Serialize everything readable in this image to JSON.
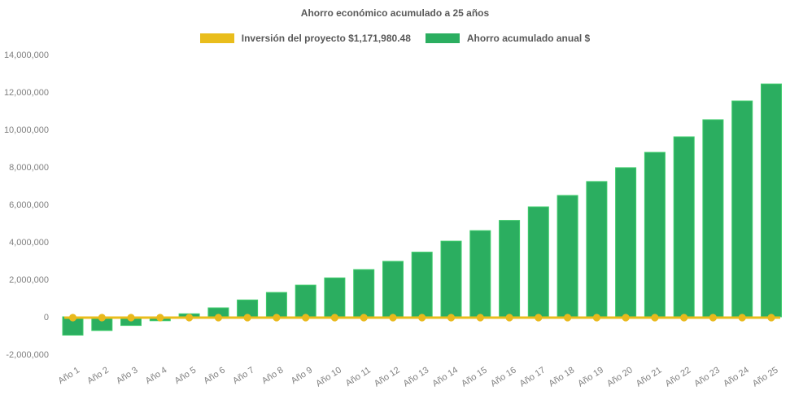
{
  "chart_data": {
    "type": "bar",
    "title": "Ahorro económico acumulado a 25 años",
    "categories": [
      "Año 1",
      "Año 2",
      "Año 3",
      "Año 4",
      "Año 5",
      "Año 6",
      "Año 7",
      "Año 8",
      "Año 9",
      "Año 10",
      "Año 11",
      "Año 12",
      "Año 13",
      "Año 14",
      "Año 15",
      "Año 16",
      "Año 17",
      "Año 18",
      "Año 19",
      "Año 20",
      "Año 21",
      "Año 22",
      "Año 23",
      "Año 24",
      "Año 25"
    ],
    "series": [
      {
        "name": "Inversión del proyecto $1,171,980.48",
        "type": "line",
        "color": "#E9BD1C",
        "marker_color": "#E9B91C",
        "values": [
          0,
          0,
          0,
          0,
          0,
          0,
          0,
          0,
          0,
          0,
          0,
          0,
          0,
          0,
          0,
          0,
          0,
          0,
          0,
          0,
          0,
          0,
          0,
          0,
          0
        ]
      },
      {
        "name": "Ahorro acumulado anual $",
        "type": "bar",
        "color": "#2BAE60",
        "edge_color": "#3FCC6C",
        "values": [
          -980000,
          -730000,
          -460000,
          -210000,
          160000,
          480000,
          900000,
          1300000,
          1690000,
          2080000,
          2520000,
          2960000,
          3450000,
          4040000,
          4600000,
          5150000,
          5870000,
          6480000,
          7220000,
          7960000,
          8780000,
          9610000,
          10520000,
          11520000,
          12430000
        ]
      }
    ],
    "ylim": [
      -2000000,
      14000000
    ],
    "ytick_step": 2000000,
    "yticks": [
      {
        "label": "14,000,000",
        "value": 14000000
      },
      {
        "label": "12,000,000",
        "value": 12000000
      },
      {
        "label": "10,000,000",
        "value": 10000000
      },
      {
        "label": "8,000,000",
        "value": 8000000
      },
      {
        "label": "6,000,000",
        "value": 6000000
      },
      {
        "label": "4,000,000",
        "value": 4000000
      },
      {
        "label": "2,000,000",
        "value": 2000000
      },
      {
        "label": "0",
        "value": 0
      },
      {
        "label": "-2,000,000",
        "value": -2000000
      }
    ],
    "grid": false,
    "legend_position": "top",
    "xlabel": "",
    "ylabel": ""
  }
}
